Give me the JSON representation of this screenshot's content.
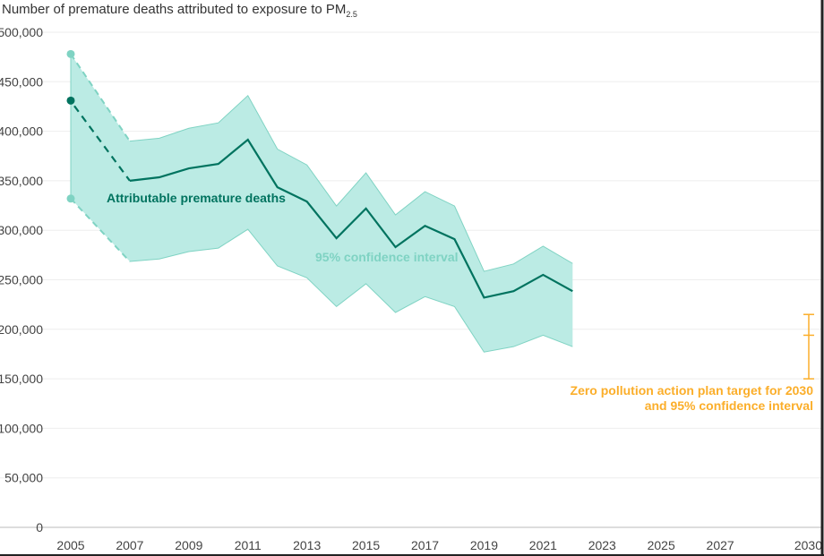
{
  "chart_data": {
    "type": "line",
    "title": "Number of premature deaths attributed to exposure to PM",
    "title_subscript": "2.5",
    "xlim": [
      2005,
      2030
    ],
    "ylim": [
      0,
      500000
    ],
    "grid": true,
    "x_ticks": [
      "2005",
      "2007",
      "2009",
      "2011",
      "2013",
      "2015",
      "2017",
      "2019",
      "2021",
      "2023",
      "2025",
      "2027",
      "2030"
    ],
    "y_ticks": [
      "0",
      "50,000",
      "100,000",
      "150,000",
      "200,000",
      "250,000",
      "300,000",
      "350,000",
      "400,000",
      "450,000",
      "500,000"
    ],
    "x": [
      2005,
      2007,
      2008,
      2009,
      2010,
      2011,
      2012,
      2013,
      2014,
      2015,
      2016,
      2017,
      2018,
      2019,
      2020,
      2021,
      2022
    ],
    "series": [
      {
        "name": "Attributable premature deaths",
        "color": "#00735f",
        "values": [
          431000,
          350000,
          353500,
          362500,
          367000,
          391500,
          343500,
          329000,
          292000,
          322000,
          283000,
          304500,
          291000,
          232000,
          238500,
          255000,
          238500
        ]
      }
    ],
    "confidence_interval": {
      "name": "95% confidence interval",
      "color": "#7fd3c3",
      "fill": "#bbebe4",
      "upper": [
        478000,
        390000,
        393000,
        403000,
        408500,
        436000,
        382000,
        366000,
        324500,
        358000,
        315500,
        339000,
        324500,
        258500,
        266000,
        284000,
        266500
      ],
      "lower": [
        332000,
        268500,
        271000,
        278500,
        282000,
        301000,
        264000,
        252000,
        223000,
        246000,
        217000,
        233000,
        223000,
        177000,
        182500,
        194000,
        182500
      ]
    },
    "target": {
      "label_line1": "Zero pollution action plan target for 2030",
      "label_line2": "and 95% confidence interval",
      "year": 2030,
      "value": 194000,
      "upper": 215000,
      "lower": 150000,
      "color": "#fbae2a"
    },
    "annotations": {
      "series_label": "Attributable premature deaths",
      "ci_label": "95% confidence interval"
    }
  }
}
